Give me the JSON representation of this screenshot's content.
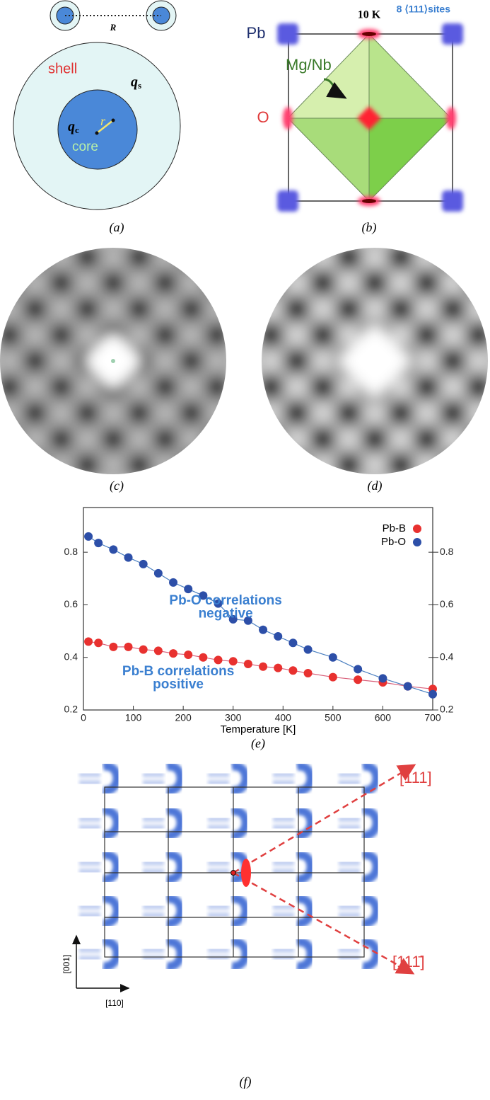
{
  "panel_a": {
    "distance_label": "R",
    "shell_label": "shell",
    "shell_charge": "q",
    "shell_charge_sub": "s",
    "core_charge": "q",
    "core_charge_sub": "c",
    "radius_label": "r",
    "core_label": "core",
    "caption": "(a)"
  },
  "panel_b": {
    "sites_label": "8 ⟨111⟩sites",
    "temperature": "10 K",
    "pb_label": "Pb",
    "mgnb_label": "Mg/Nb",
    "o_label": "O",
    "caption": "(b)"
  },
  "panel_c": {
    "caption": "(c)"
  },
  "panel_d": {
    "caption": "(d)"
  },
  "panel_e": {
    "caption": "(e)"
  },
  "chart_data": {
    "type": "line",
    "xlabel": "Temperature [K]",
    "x": [
      10,
      30,
      60,
      90,
      120,
      150,
      180,
      210,
      240,
      270,
      300,
      330,
      360,
      390,
      420,
      450,
      500,
      550,
      600,
      650,
      700
    ],
    "series": [
      {
        "name": "Pb-B",
        "color": "#e8312f",
        "line_color": "#d9607a",
        "values": [
          0.46,
          0.455,
          0.44,
          0.44,
          0.43,
          0.425,
          0.415,
          0.41,
          0.4,
          0.39,
          0.385,
          0.375,
          0.365,
          0.36,
          0.35,
          0.34,
          0.325,
          0.315,
          0.305,
          0.29,
          0.28
        ]
      },
      {
        "name": "Pb-O",
        "color": "#2d4fa8",
        "line_color": "#4a7fc0",
        "values": [
          0.86,
          0.835,
          0.81,
          0.78,
          0.755,
          0.72,
          0.685,
          0.66,
          0.635,
          0.605,
          0.545,
          0.54,
          0.505,
          0.48,
          0.455,
          0.43,
          0.4,
          0.355,
          0.32,
          0.29,
          0.26
        ]
      }
    ],
    "xlim": [
      0,
      700
    ],
    "xticks": [
      0,
      100,
      200,
      300,
      400,
      500,
      600,
      700
    ],
    "ylim": [
      0.2,
      0.97
    ],
    "yticks": [
      0.2,
      0.4,
      0.6,
      0.8
    ],
    "legend": "top-right",
    "annotations": [
      "Pb-O correlations",
      "negative",
      "Pb-B correlations",
      "positive"
    ]
  },
  "panel_f": {
    "axis_up": "[001]",
    "axis_right": "[110]",
    "direction_1": "[111]",
    "direction_2": "[111̄]",
    "caption": "(f)"
  }
}
